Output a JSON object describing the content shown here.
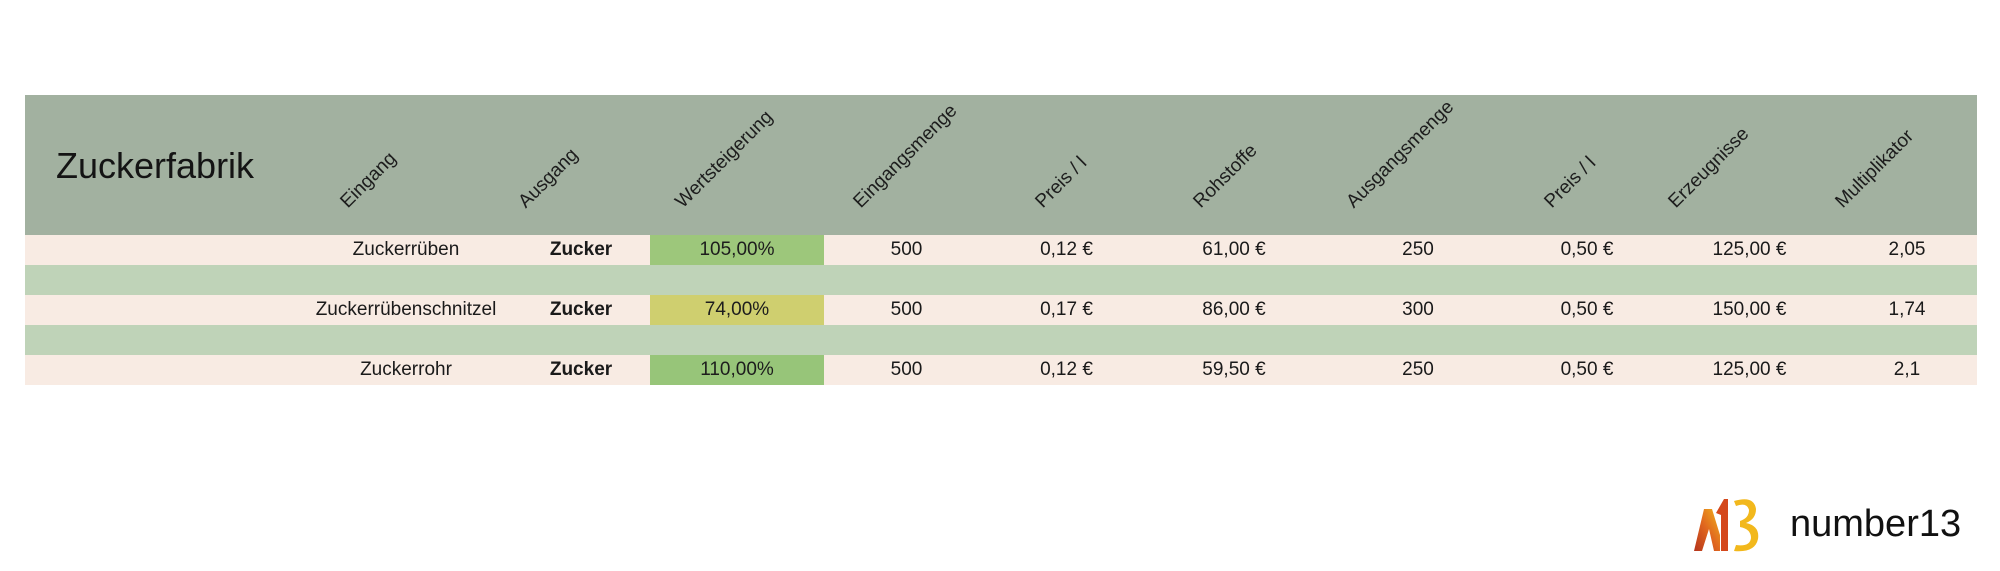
{
  "title": "Zuckerfabrik",
  "columns": [
    "Eingang",
    "Ausgang",
    "Wertsteigerung",
    "Eingangsmenge",
    "Preis / l",
    "Rohstoffe",
    "Ausgangsmenge",
    "Preis / l",
    "Erzeugnisse",
    "Multiplikator"
  ],
  "rows": [
    {
      "eingang": "Zuckerrüben",
      "ausgang": "Zucker",
      "wertsteigerung": "105,00%",
      "wertsteigerung_color": "#9dc77b",
      "eingangsmenge": "500",
      "preis_in": "0,12 €",
      "rohstoffe": "61,00 €",
      "ausgangsmenge": "250",
      "preis_out": "0,50 €",
      "erzeugnisse": "125,00 €",
      "multiplikator": "2,05"
    },
    {
      "eingang": "Zuckerrübenschnitzel",
      "ausgang": "Zucker",
      "wertsteigerung": "74,00%",
      "wertsteigerung_color": "#cfcf6f",
      "eingangsmenge": "500",
      "preis_in": "0,17 €",
      "rohstoffe": "86,00 €",
      "ausgangsmenge": "300",
      "preis_out": "0,50 €",
      "erzeugnisse": "150,00 €",
      "multiplikator": "1,74"
    },
    {
      "eingang": "Zuckerrohr",
      "ausgang": "Zucker",
      "wertsteigerung": "110,00%",
      "wertsteigerung_color": "#97c579",
      "eingangsmenge": "500",
      "preis_in": "0,12 €",
      "rohstoffe": "59,50 €",
      "ausgangsmenge": "250",
      "preis_out": "0,50 €",
      "erzeugnisse": "125,00 €",
      "multiplikator": "2,1"
    }
  ],
  "logo": {
    "text": "number13",
    "icon": "n13-logo-icon"
  }
}
